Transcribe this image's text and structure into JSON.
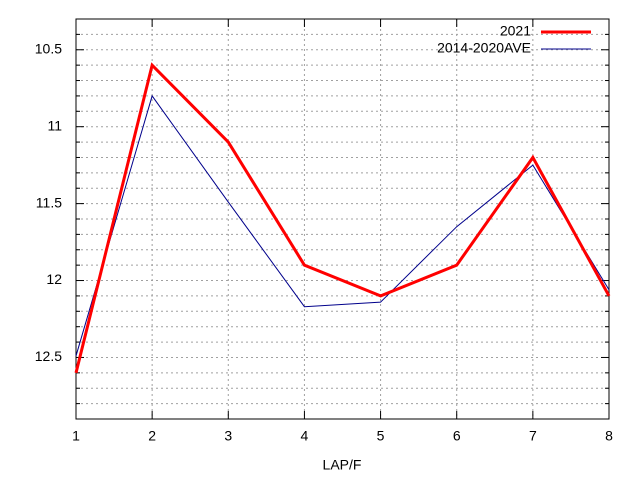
{
  "chart_data": {
    "type": "line",
    "xlabel": "LAP/F",
    "x": [
      1,
      2,
      3,
      4,
      5,
      6,
      7,
      8
    ],
    "series": [
      {
        "name": "2021",
        "color": "#ff0000",
        "width": 3,
        "values": [
          12.6,
          10.6,
          11.1,
          11.9,
          12.1,
          11.9,
          11.2,
          12.1
        ]
      },
      {
        "name": "2014-2020AVE",
        "color": "#00008b",
        "width": 1,
        "values": [
          12.49,
          10.8,
          11.49,
          12.17,
          12.14,
          11.65,
          11.25,
          12.06
        ]
      }
    ],
    "xlim": [
      1,
      8
    ],
    "xticks": [
      1,
      2,
      3,
      4,
      5,
      6,
      7,
      8
    ],
    "ylim": [
      10.3,
      12.9
    ],
    "y_reversed": true,
    "yticks": [
      10.5,
      11,
      11.5,
      12,
      12.5
    ],
    "yminorticks": [
      10.4,
      10.6,
      10.7,
      10.8,
      10.9,
      11.1,
      11.2,
      11.3,
      11.4,
      11.6,
      11.7,
      11.8,
      11.9,
      12.1,
      12.2,
      12.3,
      12.4,
      12.6,
      12.7,
      12.8
    ],
    "grid": true,
    "legend": "top-right"
  }
}
